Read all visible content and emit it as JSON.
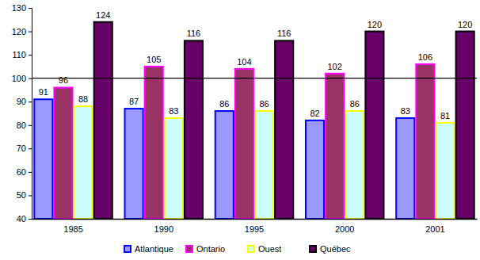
{
  "chart_data": {
    "type": "bar",
    "categories": [
      "1985",
      "1990",
      "1995",
      "2000",
      "2001"
    ],
    "series": [
      {
        "name": "Atlantique",
        "color": "#9999ff",
        "values": [
          91,
          87,
          86,
          82,
          83
        ]
      },
      {
        "name": "Ontario",
        "color": "#993366",
        "values": [
          96,
          105,
          104,
          102,
          106
        ]
      },
      {
        "name": "Ouest",
        "color": "#ccffff",
        "values": [
          88,
          83,
          86,
          86,
          81
        ]
      },
      {
        "name": "Québec",
        "color": "#660066",
        "values": [
          124,
          116,
          116,
          120,
          120
        ]
      }
    ],
    "ylim": [
      40,
      130
    ],
    "yticks": [
      40,
      50,
      60,
      70,
      80,
      90,
      100,
      110,
      120,
      130
    ],
    "reference_line": 100,
    "grid": false,
    "legend": "bottom",
    "data_labels": true
  }
}
